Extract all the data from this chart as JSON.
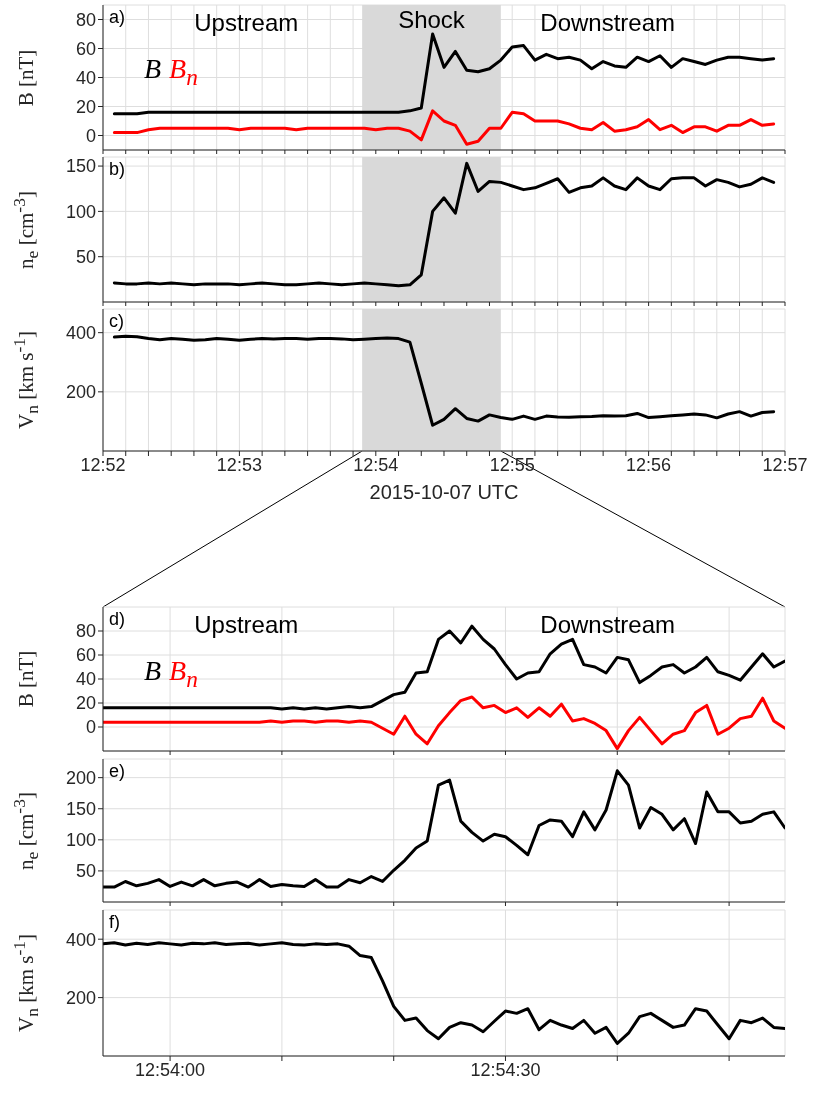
{
  "chart_data": [
    {
      "type": "line",
      "ylabel": "B [nT]",
      "annotations": [
        "a)",
        "Upstream",
        "Downstream"
      ],
      "legend": "left",
      "grid": true,
      "tick_labels": "y",
      "xlim": [
        12.866667,
        12.95
      ],
      "ylim": [
        -10,
        90
      ],
      "yticks": [
        0,
        20,
        40,
        60,
        80
      ],
      "xticks": [
        {
          "value": 12.866667,
          "label": null
        },
        {
          "value": 12.869444,
          "label": null
        },
        {
          "value": 12.872222,
          "label": null
        },
        {
          "value": 12.875,
          "label": null
        },
        {
          "value": 12.877778,
          "label": null
        },
        {
          "value": 12.880556,
          "label": null
        },
        {
          "value": 12.883333,
          "label": null
        },
        {
          "value": 12.886111,
          "label": null
        },
        {
          "value": 12.888889,
          "label": null
        },
        {
          "value": 12.891667,
          "label": null
        },
        {
          "value": 12.894444,
          "label": null
        },
        {
          "value": 12.897222,
          "label": null
        },
        {
          "value": 12.9,
          "label": null
        },
        {
          "value": 12.902778,
          "label": null
        },
        {
          "value": 12.905556,
          "label": null
        },
        {
          "value": 12.908333,
          "label": null
        },
        {
          "value": 12.911111,
          "label": null
        },
        {
          "value": 12.913889,
          "label": null
        },
        {
          "value": 12.916667,
          "label": null
        },
        {
          "value": 12.919444,
          "label": null
        },
        {
          "value": 12.922222,
          "label": null
        },
        {
          "value": 12.925,
          "label": null
        },
        {
          "value": 12.927778,
          "label": null
        },
        {
          "value": 12.930556,
          "label": null
        },
        {
          "value": 12.933333,
          "label": null
        },
        {
          "value": 12.936111,
          "label": null
        },
        {
          "value": 12.938889,
          "label": null
        },
        {
          "value": 12.941667,
          "label": null
        },
        {
          "value": 12.944444,
          "label": null
        },
        {
          "value": 12.947222,
          "label": null
        },
        {
          "value": 12.95,
          "label": null
        }
      ],
      "bands": [
        {
          "axis": "x",
          "from": 12.898333,
          "to": 12.915278,
          "label": "Shock",
          "color": "#d9d9d9"
        }
      ],
      "x": [
        12.868056,
        12.869444,
        12.870833,
        12.872222,
        12.873611,
        12.875,
        12.876389,
        12.877778,
        12.879167,
        12.880556,
        12.881944,
        12.883333,
        12.884722,
        12.886111,
        12.8875,
        12.888889,
        12.890278,
        12.891667,
        12.893056,
        12.894444,
        12.895833,
        12.897222,
        12.898611,
        12.9,
        12.901389,
        12.902778,
        12.904167,
        12.905556,
        12.906944,
        12.908333,
        12.909722,
        12.911111,
        12.9125,
        12.913889,
        12.915278,
        12.916667,
        12.918056,
        12.919444,
        12.920833,
        12.922222,
        12.923611,
        12.925,
        12.926389,
        12.927778,
        12.929167,
        12.930556,
        12.931944,
        12.933333,
        12.934722,
        12.936111,
        12.9375,
        12.938889,
        12.940278,
        12.941667,
        12.943056,
        12.944444,
        12.945833,
        12.947222,
        12.948611
      ],
      "series": [
        {
          "name": "B",
          "color": "#000000",
          "values": [
            15,
            15,
            15,
            16,
            16,
            16,
            16,
            16,
            16,
            16,
            16,
            16,
            16,
            16,
            16,
            16,
            16,
            16,
            16,
            16,
            16,
            16,
            16,
            16,
            16,
            16,
            17,
            19,
            70,
            47,
            58,
            45,
            44,
            46,
            52,
            61,
            62,
            52,
            56,
            53,
            54,
            52,
            46,
            51,
            48,
            47,
            54,
            51,
            55,
            47,
            53,
            51,
            49,
            52,
            54,
            54,
            53,
            52,
            53
          ]
        },
        {
          "name": "B$_{n}$",
          "color": "#ff0000",
          "values": [
            2,
            2,
            2,
            4,
            5,
            5,
            5,
            5,
            5,
            5,
            5,
            4,
            5,
            5,
            5,
            5,
            4,
            5,
            5,
            5,
            5,
            5,
            5,
            4,
            5,
            5,
            3,
            -3,
            17,
            10,
            7,
            -6,
            -4,
            5,
            5,
            16,
            15,
            10,
            10,
            10,
            8,
            5,
            4,
            9,
            3,
            4,
            6,
            11,
            4,
            7,
            2,
            6,
            6,
            3,
            7,
            7,
            11,
            7,
            8
          ]
        }
      ]
    },
    {
      "type": "line",
      "ylabel": "n$_{e}$ [cm$^{-3}$]",
      "annotations": [
        "b)"
      ],
      "grid": true,
      "tick_labels": "y",
      "xlim": [
        12.866667,
        12.95
      ],
      "ylim": [
        0,
        160
      ],
      "yticks": [
        50,
        100,
        150
      ],
      "xticks": [
        {
          "value": 12.866667,
          "label": null
        },
        {
          "value": 12.869444,
          "label": null
        },
        {
          "value": 12.872222,
          "label": null
        },
        {
          "value": 12.875,
          "label": null
        },
        {
          "value": 12.877778,
          "label": null
        },
        {
          "value": 12.880556,
          "label": null
        },
        {
          "value": 12.883333,
          "label": null
        },
        {
          "value": 12.886111,
          "label": null
        },
        {
          "value": 12.888889,
          "label": null
        },
        {
          "value": 12.891667,
          "label": null
        },
        {
          "value": 12.894444,
          "label": null
        },
        {
          "value": 12.897222,
          "label": null
        },
        {
          "value": 12.9,
          "label": null
        },
        {
          "value": 12.902778,
          "label": null
        },
        {
          "value": 12.905556,
          "label": null
        },
        {
          "value": 12.908333,
          "label": null
        },
        {
          "value": 12.911111,
          "label": null
        },
        {
          "value": 12.913889,
          "label": null
        },
        {
          "value": 12.916667,
          "label": null
        },
        {
          "value": 12.919444,
          "label": null
        },
        {
          "value": 12.922222,
          "label": null
        },
        {
          "value": 12.925,
          "label": null
        },
        {
          "value": 12.927778,
          "label": null
        },
        {
          "value": 12.930556,
          "label": null
        },
        {
          "value": 12.933333,
          "label": null
        },
        {
          "value": 12.936111,
          "label": null
        },
        {
          "value": 12.938889,
          "label": null
        },
        {
          "value": 12.941667,
          "label": null
        },
        {
          "value": 12.944444,
          "label": null
        },
        {
          "value": 12.947222,
          "label": null
        },
        {
          "value": 12.95,
          "label": null
        }
      ],
      "bands": [
        {
          "axis": "x",
          "from": 12.898333,
          "to": 12.915278,
          "color": "#d9d9d9"
        }
      ],
      "x": [
        12.868056,
        12.869444,
        12.870833,
        12.872222,
        12.873611,
        12.875,
        12.876389,
        12.877778,
        12.879167,
        12.880556,
        12.881944,
        12.883333,
        12.884722,
        12.886111,
        12.8875,
        12.888889,
        12.890278,
        12.891667,
        12.893056,
        12.894444,
        12.895833,
        12.897222,
        12.898611,
        12.9,
        12.901389,
        12.902778,
        12.904167,
        12.905556,
        12.906944,
        12.908333,
        12.909722,
        12.911111,
        12.9125,
        12.913889,
        12.915278,
        12.916667,
        12.918056,
        12.919444,
        12.920833,
        12.922222,
        12.923611,
        12.925,
        12.926389,
        12.927778,
        12.929167,
        12.930556,
        12.931944,
        12.933333,
        12.934722,
        12.936111,
        12.9375,
        12.938889,
        12.940278,
        12.941667,
        12.943056,
        12.944444,
        12.945833,
        12.947222,
        12.948611
      ],
      "series": [
        {
          "color": "#000000",
          "values": [
            21,
            20,
            20,
            21,
            20,
            21,
            20,
            19,
            20,
            20,
            20,
            19,
            20,
            21,
            20,
            19,
            19,
            20,
            21,
            20,
            19,
            20,
            21,
            20,
            19,
            18,
            19,
            30,
            100,
            115,
            98,
            153,
            122,
            133,
            132,
            128,
            124,
            126,
            131,
            136,
            121,
            126,
            128,
            137,
            128,
            124,
            137,
            128,
            124,
            136,
            137,
            137,
            128,
            135,
            132,
            127,
            130,
            137,
            132
          ]
        }
      ]
    },
    {
      "type": "line",
      "ylabel": "V$_{n}$ [km s$^{-1}$]",
      "xlabel": "2015-10-07 UTC",
      "annotations": [
        "c)"
      ],
      "grid": true,
      "xlim": [
        12.866667,
        12.95
      ],
      "ylim": [
        0,
        480
      ],
      "yticks": [
        200,
        400
      ],
      "xticks": [
        {
          "value": 12.866667,
          "label": "12:52"
        },
        {
          "value": 12.869444,
          "label": null
        },
        {
          "value": 12.872222,
          "label": null
        },
        {
          "value": 12.875,
          "label": null
        },
        {
          "value": 12.877778,
          "label": null
        },
        {
          "value": 12.880556,
          "label": null
        },
        {
          "value": 12.883333,
          "label": "12:53"
        },
        {
          "value": 12.886111,
          "label": null
        },
        {
          "value": 12.888889,
          "label": null
        },
        {
          "value": 12.891667,
          "label": null
        },
        {
          "value": 12.894444,
          "label": null
        },
        {
          "value": 12.897222,
          "label": null
        },
        {
          "value": 12.9,
          "label": "12:54"
        },
        {
          "value": 12.902778,
          "label": null
        },
        {
          "value": 12.905556,
          "label": null
        },
        {
          "value": 12.908333,
          "label": null
        },
        {
          "value": 12.911111,
          "label": null
        },
        {
          "value": 12.913889,
          "label": null
        },
        {
          "value": 12.916667,
          "label": "12:55"
        },
        {
          "value": 12.919444,
          "label": null
        },
        {
          "value": 12.922222,
          "label": null
        },
        {
          "value": 12.925,
          "label": null
        },
        {
          "value": 12.927778,
          "label": null
        },
        {
          "value": 12.930556,
          "label": null
        },
        {
          "value": 12.933333,
          "label": "12:56"
        },
        {
          "value": 12.936111,
          "label": null
        },
        {
          "value": 12.938889,
          "label": null
        },
        {
          "value": 12.941667,
          "label": null
        },
        {
          "value": 12.944444,
          "label": null
        },
        {
          "value": 12.947222,
          "label": null
        },
        {
          "value": 12.95,
          "label": "12:57"
        }
      ],
      "bands": [
        {
          "axis": "x",
          "from": 12.898333,
          "to": 12.915278,
          "color": "#d9d9d9"
        }
      ],
      "x": [
        12.868056,
        12.869444,
        12.870833,
        12.872222,
        12.873611,
        12.875,
        12.876389,
        12.877778,
        12.879167,
        12.880556,
        12.881944,
        12.883333,
        12.884722,
        12.886111,
        12.8875,
        12.888889,
        12.890278,
        12.891667,
        12.893056,
        12.894444,
        12.895833,
        12.897222,
        12.898611,
        12.9,
        12.901389,
        12.902778,
        12.904167,
        12.905556,
        12.906944,
        12.908333,
        12.909722,
        12.911111,
        12.9125,
        12.913889,
        12.915278,
        12.916667,
        12.918056,
        12.919444,
        12.920833,
        12.922222,
        12.923611,
        12.925,
        12.926389,
        12.927778,
        12.929167,
        12.930556,
        12.931944,
        12.933333,
        12.934722,
        12.936111,
        12.9375,
        12.938889,
        12.940278,
        12.941667,
        12.943056,
        12.944444,
        12.945833,
        12.947222,
        12.948611
      ],
      "series": [
        {
          "color": "#000000",
          "values": [
            385,
            388,
            386,
            380,
            376,
            380,
            378,
            374,
            376,
            380,
            378,
            374,
            378,
            380,
            379,
            380,
            380,
            378,
            380,
            380,
            379,
            376,
            378,
            380,
            382,
            380,
            368,
            229,
            87,
            107,
            143,
            110,
            101,
            122,
            113,
            107,
            118,
            107,
            118,
            115,
            114,
            116,
            117,
            119,
            118,
            119,
            127,
            113,
            116,
            119,
            122,
            125,
            122,
            112,
            125,
            133,
            118,
            130,
            133
          ]
        }
      ]
    },
    {
      "type": "line",
      "ylabel": "B [nT]",
      "annotations": [
        "d)",
        "Upstream",
        "Downstream"
      ],
      "legend": "left",
      "grid": true,
      "tick_labels": "y",
      "xlim": [
        12.898333,
        12.915278
      ],
      "ylim": [
        -20,
        100
      ],
      "yticks": [
        0,
        20,
        40,
        60,
        80
      ],
      "xticks": [
        {
          "value": 12.9,
          "label": null
        },
        {
          "value": 12.902778,
          "label": null
        },
        {
          "value": 12.905556,
          "label": null
        },
        {
          "value": 12.908333,
          "label": null
        },
        {
          "value": 12.911111,
          "label": null
        },
        {
          "value": 12.913889,
          "label": null
        }
      ],
      "x": [
        12.898333,
        12.898611,
        12.898889,
        12.899167,
        12.899444,
        12.899722,
        12.9,
        12.900278,
        12.900556,
        12.900833,
        12.901111,
        12.901389,
        12.901667,
        12.901944,
        12.902222,
        12.9025,
        12.902778,
        12.903056,
        12.903333,
        12.903611,
        12.903889,
        12.904167,
        12.904444,
        12.904722,
        12.905,
        12.905278,
        12.905556,
        12.905833,
        12.906111,
        12.906389,
        12.906667,
        12.906944,
        12.907222,
        12.9075,
        12.907778,
        12.908056,
        12.908333,
        12.908611,
        12.908889,
        12.909167,
        12.909444,
        12.909722,
        12.91,
        12.910278,
        12.910556,
        12.910833,
        12.911111,
        12.911389,
        12.911667,
        12.911944,
        12.912222,
        12.9125,
        12.912778,
        12.913056,
        12.913333,
        12.913611,
        12.913889,
        12.914167,
        12.914444,
        12.914722,
        12.915,
        12.915278
      ],
      "series": [
        {
          "name": "B",
          "color": "#000000",
          "values": [
            16,
            16,
            16,
            16,
            16,
            16,
            16,
            16,
            16,
            16,
            16,
            16,
            16,
            16,
            16,
            16,
            15,
            16,
            15,
            16,
            15,
            16,
            17,
            16,
            17,
            22,
            27,
            29,
            45,
            46,
            73,
            80,
            70,
            84,
            73,
            65,
            52,
            40,
            45,
            46,
            61,
            69,
            73,
            52,
            50,
            45,
            58,
            56,
            37,
            43,
            50,
            52,
            45,
            50,
            58,
            46,
            43,
            39,
            50,
            61,
            50,
            55
          ]
        },
        {
          "name": "B$_{n}$",
          "color": "#ff0000",
          "values": [
            4,
            4,
            4,
            4,
            4,
            4,
            4,
            4,
            4,
            4,
            4,
            4,
            4,
            4,
            4,
            5,
            4,
            5,
            5,
            4,
            5,
            5,
            4,
            5,
            4,
            -1,
            -6,
            9,
            -6,
            -14,
            1,
            12,
            22,
            25,
            16,
            18,
            12,
            16,
            8,
            16,
            9,
            19,
            5,
            7,
            3,
            -3,
            -18,
            -3,
            8,
            -3,
            -14,
            -6,
            -3,
            12,
            18,
            -6,
            -1,
            7,
            9,
            24,
            5,
            -1
          ]
        }
      ]
    },
    {
      "type": "line",
      "ylabel": "n$_{e}$ [cm$^{-3}$]",
      "annotations": [
        "e)"
      ],
      "grid": true,
      "tick_labels": "y",
      "xlim": [
        12.898333,
        12.915278
      ],
      "ylim": [
        0,
        230
      ],
      "yticks": [
        50,
        100,
        150,
        200
      ],
      "xticks": [
        {
          "value": 12.9,
          "label": null
        },
        {
          "value": 12.902778,
          "label": null
        },
        {
          "value": 12.905556,
          "label": null
        },
        {
          "value": 12.908333,
          "label": null
        },
        {
          "value": 12.911111,
          "label": null
        },
        {
          "value": 12.913889,
          "label": null
        }
      ],
      "x": [
        12.898333,
        12.898611,
        12.898889,
        12.899167,
        12.899444,
        12.899722,
        12.9,
        12.900278,
        12.900556,
        12.900833,
        12.901111,
        12.901389,
        12.901667,
        12.901944,
        12.902222,
        12.9025,
        12.902778,
        12.903056,
        12.903333,
        12.903611,
        12.903889,
        12.904167,
        12.904444,
        12.904722,
        12.905,
        12.905278,
        12.905556,
        12.905833,
        12.906111,
        12.906389,
        12.906667,
        12.906944,
        12.907222,
        12.9075,
        12.907778,
        12.908056,
        12.908333,
        12.908611,
        12.908889,
        12.909167,
        12.909444,
        12.909722,
        12.91,
        12.910278,
        12.910556,
        12.910833,
        12.911111,
        12.911389,
        12.911667,
        12.911944,
        12.912222,
        12.9125,
        12.912778,
        12.913056,
        12.913333,
        12.913611,
        12.913889,
        12.914167,
        12.914444,
        12.914722,
        12.915,
        12.915278
      ],
      "series": [
        {
          "color": "#000000",
          "values": [
            24,
            24,
            33,
            26,
            30,
            36,
            25,
            32,
            26,
            36,
            26,
            30,
            32,
            24,
            36,
            25,
            28,
            26,
            25,
            36,
            24,
            24,
            36,
            31,
            41,
            33,
            51,
            67,
            87,
            98,
            188,
            196,
            130,
            112,
            98,
            109,
            105,
            91,
            76,
            123,
            132,
            130,
            105,
            145,
            116,
            148,
            211,
            188,
            119,
            152,
            141,
            116,
            134,
            94,
            177,
            145,
            145,
            127,
            130,
            141,
            145,
            119
          ]
        }
      ]
    },
    {
      "type": "line",
      "ylabel": "V$_{n}$ [km s$^{-1}$]",
      "annotations": [
        "f)"
      ],
      "grid": true,
      "xlim": [
        12.898333,
        12.915278
      ],
      "ylim": [
        0,
        500
      ],
      "yticks": [
        200,
        400
      ],
      "xticks": [
        {
          "value": 12.9,
          "label": "12:54:00"
        },
        {
          "value": 12.902778,
          "label": null
        },
        {
          "value": 12.905556,
          "label": null
        },
        {
          "value": 12.908333,
          "label": "12:54:30"
        },
        {
          "value": 12.911111,
          "label": null
        },
        {
          "value": 12.913889,
          "label": null
        }
      ],
      "x": [
        12.898333,
        12.898611,
        12.898889,
        12.899167,
        12.899444,
        12.899722,
        12.9,
        12.900278,
        12.900556,
        12.900833,
        12.901111,
        12.901389,
        12.901667,
        12.901944,
        12.902222,
        12.9025,
        12.902778,
        12.903056,
        12.903333,
        12.903611,
        12.903889,
        12.904167,
        12.904444,
        12.904722,
        12.905,
        12.905278,
        12.905556,
        12.905833,
        12.906111,
        12.906389,
        12.906667,
        12.906944,
        12.907222,
        12.9075,
        12.907778,
        12.908056,
        12.908333,
        12.908611,
        12.908889,
        12.909167,
        12.909444,
        12.909722,
        12.91,
        12.910278,
        12.910556,
        12.910833,
        12.911111,
        12.911389,
        12.911667,
        12.911944,
        12.912222,
        12.9125,
        12.912778,
        12.913056,
        12.913333,
        12.913611,
        12.913889,
        12.914167,
        12.914444,
        12.914722,
        12.915,
        12.915278
      ],
      "series": [
        {
          "color": "#000000",
          "values": [
            384,
            388,
            380,
            386,
            382,
            388,
            384,
            380,
            386,
            384,
            388,
            382,
            384,
            386,
            380,
            384,
            388,
            382,
            380,
            384,
            382,
            384,
            376,
            344,
            337,
            257,
            170,
            122,
            130,
            87,
            59,
            98,
            114,
            106,
            83,
            119,
            154,
            146,
            162,
            90,
            122,
            106,
            94,
            122,
            78,
            98,
            43,
            78,
            135,
            146,
            122,
            98,
            106,
            162,
            154,
            106,
            59,
            122,
            114,
            130,
            98,
            94
          ]
        }
      ]
    }
  ]
}
